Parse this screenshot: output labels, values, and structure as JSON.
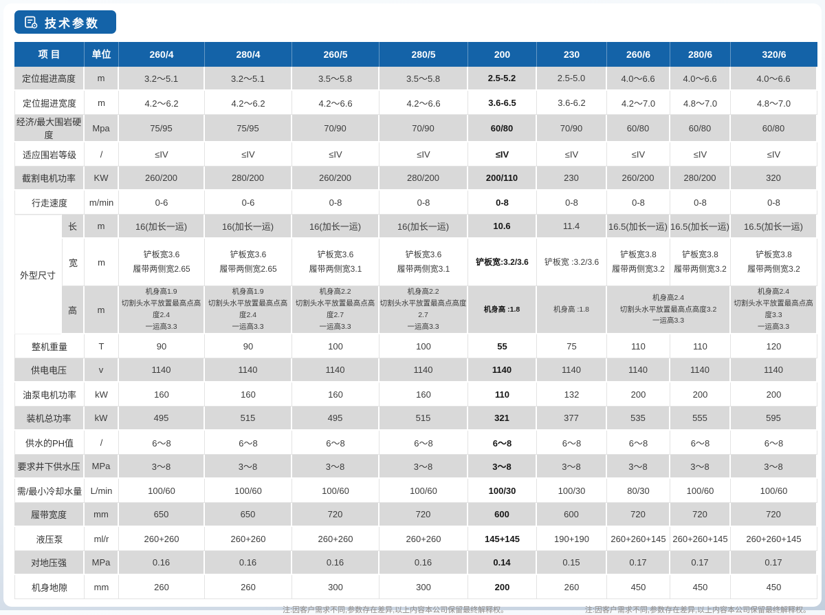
{
  "page": {
    "title": "技术参数",
    "note_left": "注:因客户需求不同,参数存在差异,以上内容本公司保留最终解释权。",
    "note_right": "注:因客户需求不同,参数存在差异,以上内容本公司保留最终解释权。"
  },
  "colors": {
    "header_bg": "#1463a8",
    "stripe_bg": "#d9d9d9"
  },
  "table": {
    "header_item": "项 目",
    "header_unit": "单位",
    "columns": [
      "260/4",
      "280/4",
      "260/5",
      "280/5",
      "200",
      "230",
      "260/6",
      "280/6",
      "320/6"
    ],
    "highlight_column": "200",
    "highlight_index": 4,
    "rows": [
      {
        "label": "定位掘进高度",
        "unit": "m",
        "values": [
          "3.2～5.1",
          "3.2～5.1",
          "3.5～5.8",
          "3.5～5.8",
          "2.5-5.2",
          "2.5-5.0",
          "4.0～6.6",
          "4.0～6.6",
          "4.0～6.6"
        ]
      },
      {
        "label": "定位掘进宽度",
        "unit": "m",
        "values": [
          "4.2～6.2",
          "4.2～6.2",
          "4.2～6.6",
          "4.2～6.6",
          "3.6-6.5",
          "3.6-6.2",
          "4.2～7.0",
          "4.8～7.0",
          "4.8～7.0"
        ]
      },
      {
        "label": "经济/最大围岩硬度",
        "unit": "Mpa",
        "values": [
          "75/95",
          "75/95",
          "70/90",
          "70/90",
          "60/80",
          "70/90",
          "60/80",
          "60/80",
          "60/80"
        ]
      },
      {
        "label": "适应围岩等级",
        "unit": "/",
        "values": [
          "≤IV",
          "≤IV",
          "≤IV",
          "≤IV",
          "≤IV",
          "≤IV",
          "≤IV",
          "≤IV",
          "≤IV"
        ]
      },
      {
        "label": "截割电机功率",
        "unit": "KW",
        "values": [
          "260/200",
          "280/200",
          "260/200",
          "280/200",
          "200/110",
          "230",
          "260/200",
          "280/200",
          "320"
        ]
      },
      {
        "label": "行走速度",
        "unit": "m/min",
        "values": [
          "0-6",
          "0-6",
          "0-8",
          "0-8",
          "0-8",
          "0-8",
          "0-8",
          "0-8",
          "0-8"
        ]
      },
      {
        "group": "外型尺寸",
        "group_span": 3,
        "sub": "长",
        "unit": "m",
        "values": [
          "16(加长一运)",
          "16(加长一运)",
          "16(加长一运)",
          "16(加长一运)",
          "10.6",
          "11.4",
          "16.5(加长一运)",
          "16.5(加长一运)",
          "16.5(加长一运)"
        ]
      },
      {
        "sub": "宽",
        "unit": "m",
        "values": [
          "铲板宽3.6\n履带两侧宽2.65",
          "铲板宽3.6\n履带两侧宽2.65",
          "铲板宽3.6\n履带两侧宽3.1",
          "铲板宽3.6\n履带两侧宽3.1",
          "铲板宽:3.2/3.6",
          "铲板宽 :3.2/3.6",
          "铲板宽3.8\n履带两侧宽3.2",
          "铲板宽3.8\n履带两侧宽3.2",
          "铲板宽3.8\n履带两侧宽3.2"
        ]
      },
      {
        "sub": "高",
        "unit": "m",
        "spans": [
          1,
          1,
          1,
          1,
          1,
          1,
          2,
          1
        ],
        "values": [
          "机身高1.9\n切割头水平放置最高点高度2.4\n一运高3.3",
          "机身高1.9\n切割头水平放置最高点高度2.4\n一运高3.3",
          "机身高2.2\n切割头水平放置最高点高度2.7\n一运高3.3",
          "机身高2.2\n切割头水平放置最高点高度 2.7\n一运高3.3",
          "机身高 :1.8",
          "机身高 :1.8",
          "机身高2.4\n切割头水平放置最高点高度3.2\n一运高3.3",
          "机身高2.4\n切割头水平放置最高点高度3.3\n一运高3.3"
        ]
      },
      {
        "label": "整机重量",
        "unit": "T",
        "values": [
          "90",
          "90",
          "100",
          "100",
          "55",
          "75",
          "110",
          "110",
          "120"
        ]
      },
      {
        "label": "供电电压",
        "unit": "v",
        "values": [
          "1140",
          "1140",
          "1140",
          "1140",
          "1140",
          "1140",
          "1140",
          "1140",
          "1140"
        ]
      },
      {
        "label": "油泵电机功率",
        "unit": "kW",
        "values": [
          "160",
          "160",
          "160",
          "160",
          "110",
          "132",
          "200",
          "200",
          "200"
        ]
      },
      {
        "label": "装机总功率",
        "unit": "kW",
        "values": [
          "495",
          "515",
          "495",
          "515",
          "321",
          "377",
          "535",
          "555",
          "595"
        ]
      },
      {
        "label": "供水的PH值",
        "unit": "/",
        "values": [
          "6～8",
          "6～8",
          "6～8",
          "6～8",
          "6～8",
          "6～8",
          "6～8",
          "6～8",
          "6～8"
        ]
      },
      {
        "label": "要求井下供水压",
        "unit": "MPa",
        "values": [
          "3～8",
          "3～8",
          "3～8",
          "3～8",
          "3～8",
          "3～8",
          "3～8",
          "3～8",
          "3～8"
        ]
      },
      {
        "label": "需/最小冷却水量",
        "unit": "L/min",
        "values": [
          "100/60",
          "100/60",
          "100/60",
          "100/60",
          "100/30",
          "100/30",
          "80/30",
          "100/60",
          "100/60"
        ]
      },
      {
        "label": "履带宽度",
        "unit": "mm",
        "values": [
          "650",
          "650",
          "720",
          "720",
          "600",
          "600",
          "720",
          "720",
          "720"
        ]
      },
      {
        "label": "液压泵",
        "unit": "ml/r",
        "values": [
          "260+260",
          "260+260",
          "260+260",
          "260+260",
          "145+145",
          "190+190",
          "260+260+145",
          "260+260+145",
          "260+260+145"
        ]
      },
      {
        "label": "对地压强",
        "unit": "MPa",
        "values": [
          "0.16",
          "0.16",
          "0.16",
          "0.16",
          "0.14",
          "0.15",
          "0.17",
          "0.17",
          "0.17"
        ]
      },
      {
        "label": "机身地隙",
        "unit": "mm",
        "values": [
          "260",
          "260",
          "300",
          "300",
          "200",
          "260",
          "450",
          "450",
          "450"
        ]
      }
    ]
  }
}
